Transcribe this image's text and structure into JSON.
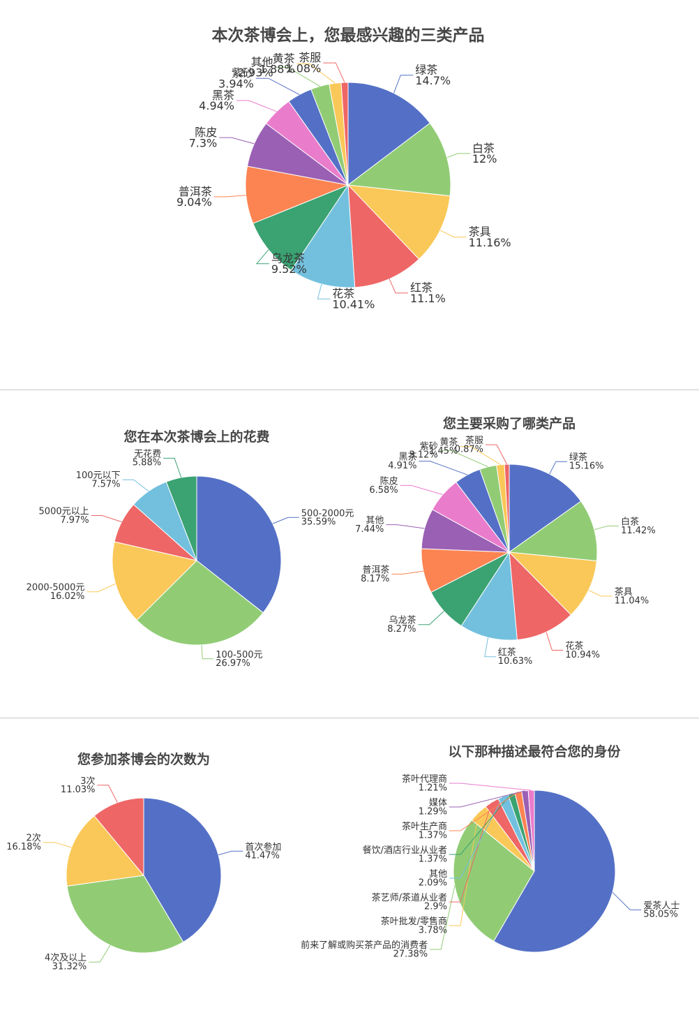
{
  "palette": [
    "#5470c6",
    "#91cc75",
    "#fac858",
    "#ee6666",
    "#73c0de",
    "#3ba272",
    "#fc8452",
    "#9a60b4",
    "#ea7ccc"
  ],
  "chart_data": [
    {
      "type": "pie",
      "title": "本次茶博会上，您最感兴趣的三类产品",
      "slices": [
        {
          "label": "绿茶",
          "value": 14.7,
          "display": "14.7%"
        },
        {
          "label": "白茶",
          "value": 12,
          "display": "12%"
        },
        {
          "label": "茶具",
          "value": 11.16,
          "display": "11.16%"
        },
        {
          "label": "红茶",
          "value": 11.1,
          "display": "11.1%"
        },
        {
          "label": "花茶",
          "value": 10.41,
          "display": "10.41%"
        },
        {
          "label": "乌龙茶",
          "value": 9.52,
          "display": "9.52%"
        },
        {
          "label": "普洱茶",
          "value": 9.04,
          "display": "9.04%"
        },
        {
          "label": "陈皮",
          "value": 7.3,
          "display": "7.3%"
        },
        {
          "label": "黑茶",
          "value": 4.94,
          "display": "4.94%"
        },
        {
          "label": "紫砂",
          "value": 3.94,
          "display": "3.94%"
        },
        {
          "label": "其他",
          "value": 2.93,
          "display": "2.93%"
        },
        {
          "label": "黄茶",
          "value": 1.88,
          "display": "1.88%"
        },
        {
          "label": "茶服",
          "value": 1.08,
          "display": "1.08%"
        }
      ]
    },
    {
      "type": "pie",
      "title": "您在本次茶博会上的花费",
      "slices": [
        {
          "label": "500-2000元",
          "value": 35.59,
          "display": "35.59%"
        },
        {
          "label": "100-500元",
          "value": 26.97,
          "display": "26.97%"
        },
        {
          "label": "2000-5000元",
          "value": 16.02,
          "display": "16.02%"
        },
        {
          "label": "5000元以上",
          "value": 7.97,
          "display": "7.97%"
        },
        {
          "label": "100元以下",
          "value": 7.57,
          "display": "7.57%"
        },
        {
          "label": "无花费",
          "value": 5.88,
          "display": "5.88%"
        }
      ]
    },
    {
      "type": "pie",
      "title": "您主要采购了哪类产品",
      "slices": [
        {
          "label": "绿茶",
          "value": 15.16,
          "display": "15.16%"
        },
        {
          "label": "白茶",
          "value": 11.42,
          "display": "11.42%"
        },
        {
          "label": "茶具",
          "value": 11.04,
          "display": "11.04%"
        },
        {
          "label": "花茶",
          "value": 10.94,
          "display": "10.94%"
        },
        {
          "label": "红茶",
          "value": 10.63,
          "display": "10.63%"
        },
        {
          "label": "乌龙茶",
          "value": 8.27,
          "display": "8.27%"
        },
        {
          "label": "普洱茶",
          "value": 8.17,
          "display": "8.17%"
        },
        {
          "label": "其他",
          "value": 7.44,
          "display": "7.44%"
        },
        {
          "label": "陈皮",
          "value": 6.58,
          "display": "6.58%"
        },
        {
          "label": "黑茶",
          "value": 4.91,
          "display": "4.91%"
        },
        {
          "label": "紫砂",
          "value": 3.12,
          "display": "3.12%"
        },
        {
          "label": "黄茶",
          "value": 1.45,
          "display": "1.45%"
        },
        {
          "label": "茶服",
          "value": 0.87,
          "display": "0.87%"
        }
      ]
    },
    {
      "type": "pie",
      "title": "您参加茶博会的次数为",
      "slices": [
        {
          "label": "首次参加",
          "value": 41.47,
          "display": "41.47%"
        },
        {
          "label": "4次及以上",
          "value": 31.32,
          "display": "31.32%"
        },
        {
          "label": "2次",
          "value": 16.18,
          "display": "16.18%"
        },
        {
          "label": "3次",
          "value": 11.03,
          "display": "11.03%"
        }
      ]
    },
    {
      "type": "pie",
      "title": "以下那种描述最符合您的身份",
      "slices": [
        {
          "label": "爱茶人士",
          "value": 58.05,
          "display": "58.05%"
        },
        {
          "label": "前来了解或购买茶产品的消费者",
          "value": 27.38,
          "display": "27.38%"
        },
        {
          "label": "茶叶批发/零售商",
          "value": 3.78,
          "display": "3.78%"
        },
        {
          "label": "茶艺师/茶道从业者",
          "value": 2.9,
          "display": "2.9%"
        },
        {
          "label": "其他",
          "value": 2.09,
          "display": "2.09%"
        },
        {
          "label": "餐饮/酒店行业从业者",
          "value": 1.37,
          "display": "1.37%"
        },
        {
          "label": "茶叶生产商",
          "value": 1.37,
          "display": "1.37%"
        },
        {
          "label": "媒体",
          "value": 1.29,
          "display": "1.29%"
        },
        {
          "label": "茶叶代理商",
          "value": 1.21,
          "display": "1.21%"
        }
      ]
    }
  ]
}
